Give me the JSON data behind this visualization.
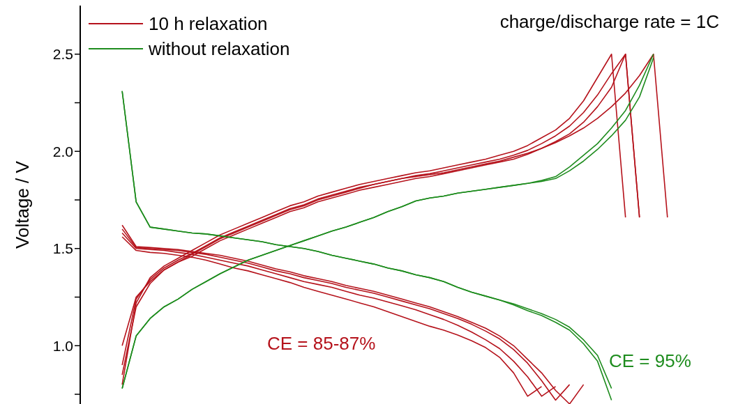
{
  "chart_data": {
    "type": "line",
    "ylabel": "Voltage / V",
    "ylim": [
      0.7,
      2.75
    ],
    "yticks": [
      {
        "value": 0.75,
        "label": null
      },
      {
        "value": 1,
        "label": "1.0"
      },
      {
        "value": 1.25,
        "label": null
      },
      1.5,
      {
        "value": 1.75,
        "label": null
      },
      {
        "value": 2,
        "label": "2.0"
      },
      {
        "value": 2.25,
        "label": null
      },
      2.5
    ],
    "categories": [
      null,
      null,
      null,
      null,
      null,
      null,
      null,
      null,
      null,
      null,
      null,
      null,
      null,
      null,
      null,
      null,
      null,
      null,
      null,
      null,
      null,
      null,
      null,
      null,
      null,
      null,
      null,
      null,
      null,
      null,
      null,
      null,
      null,
      null,
      null,
      null,
      null,
      null,
      null,
      null,
      null,
      null,
      null,
      null,
      null,
      null,
      null
    ],
    "legend": "top left",
    "marker": "none",
    "line_style": "solid",
    "tick_labels": "y",
    "annotations": [
      "charge/discharge rate = 1C",
      "CE = 85-87%",
      "CE = 95%"
    ],
    "series": [
      {
        "name": "10 h relaxation",
        "color": "#b5121b",
        "values": [
          null,
          null,
          null,
          0.8,
          1.22,
          1.35,
          1.41,
          1.45,
          1.49,
          1.53,
          1.57,
          1.6,
          1.63,
          1.66,
          1.69,
          1.72,
          1.74,
          1.77,
          1.79,
          1.81,
          1.83,
          1.845,
          1.86,
          1.875,
          1.89,
          1.9,
          1.915,
          1.93,
          1.945,
          1.96,
          1.98,
          2.0,
          2.03,
          2.07,
          2.11,
          2.17,
          2.26,
          2.38,
          2.5,
          1.66,
          null,
          null,
          null,
          null,
          null,
          null,
          null
        ]
      },
      {
        "color": "#b5121b",
        "values": [
          null,
          null,
          null,
          0.9,
          1.24,
          1.34,
          1.4,
          1.44,
          1.475,
          1.515,
          1.555,
          1.585,
          1.615,
          1.645,
          1.675,
          1.705,
          1.725,
          1.755,
          1.775,
          1.795,
          1.815,
          1.83,
          1.845,
          1.86,
          1.875,
          1.885,
          1.9,
          1.915,
          1.93,
          1.945,
          1.96,
          1.98,
          2.005,
          2.04,
          2.08,
          2.13,
          2.2,
          2.29,
          2.4,
          2.5,
          1.66,
          null,
          null,
          null,
          null,
          null,
          null
        ]
      },
      {
        "color": "#b5121b",
        "values": [
          null,
          null,
          null,
          1.0,
          1.25,
          1.33,
          1.39,
          1.43,
          1.46,
          1.5,
          1.54,
          1.57,
          1.6,
          1.63,
          1.66,
          1.69,
          1.71,
          1.74,
          1.76,
          1.78,
          1.8,
          1.815,
          1.83,
          1.845,
          1.86,
          1.87,
          1.885,
          1.9,
          1.915,
          1.93,
          1.945,
          1.96,
          1.985,
          2.015,
          2.05,
          2.09,
          2.15,
          2.23,
          2.33,
          2.5,
          1.66,
          null,
          null,
          null,
          null,
          null,
          null
        ]
      },
      {
        "color": "#b5121b",
        "values": [
          null,
          null,
          null,
          0.85,
          1.2,
          1.32,
          1.39,
          1.43,
          1.47,
          1.51,
          1.55,
          1.58,
          1.61,
          1.64,
          1.67,
          1.7,
          1.72,
          1.75,
          1.77,
          1.79,
          1.81,
          1.83,
          1.845,
          1.86,
          1.87,
          1.88,
          1.89,
          1.905,
          1.92,
          1.935,
          1.95,
          1.97,
          1.99,
          2.015,
          2.045,
          2.08,
          2.12,
          2.17,
          2.23,
          2.3,
          2.39,
          2.5,
          1.66,
          null,
          null,
          null,
          null
        ]
      },
      {
        "color": "#b5121b",
        "values": [
          null,
          null,
          null,
          1.62,
          1.51,
          1.505,
          1.5,
          1.495,
          1.485,
          1.475,
          1.465,
          1.45,
          1.435,
          1.415,
          1.395,
          1.38,
          1.36,
          1.345,
          1.33,
          1.31,
          1.295,
          1.28,
          1.26,
          1.24,
          1.22,
          1.2,
          1.175,
          1.15,
          1.12,
          1.09,
          1.05,
          1.0,
          0.93,
          0.86,
          0.77,
          0.7,
          0.8,
          null,
          null,
          null,
          null,
          null,
          null,
          null,
          null,
          null,
          null
        ]
      },
      {
        "color": "#b5121b",
        "values": [
          null,
          null,
          null,
          1.6,
          1.505,
          1.5,
          1.495,
          1.49,
          1.48,
          1.47,
          1.455,
          1.44,
          1.425,
          1.405,
          1.385,
          1.37,
          1.35,
          1.335,
          1.32,
          1.3,
          1.285,
          1.27,
          1.25,
          1.23,
          1.21,
          1.19,
          1.165,
          1.14,
          1.11,
          1.075,
          1.035,
          0.98,
          0.91,
          0.82,
          0.72,
          0.8,
          null,
          null,
          null,
          null,
          null,
          null,
          null,
          null,
          null,
          null,
          null
        ]
      },
      {
        "color": "#b5121b",
        "values": [
          null,
          null,
          null,
          1.58,
          1.5,
          1.495,
          1.49,
          1.48,
          1.47,
          1.455,
          1.44,
          1.425,
          1.41,
          1.39,
          1.37,
          1.35,
          1.33,
          1.315,
          1.3,
          1.28,
          1.26,
          1.245,
          1.225,
          1.205,
          1.185,
          1.16,
          1.135,
          1.105,
          1.07,
          1.03,
          0.985,
          0.92,
          0.84,
          0.74,
          0.79,
          null,
          null,
          null,
          null,
          null,
          null,
          null,
          null,
          null,
          null,
          null,
          null
        ]
      },
      {
        "color": "#b5121b",
        "values": [
          null,
          null,
          null,
          1.56,
          1.49,
          1.48,
          1.475,
          1.465,
          1.455,
          1.44,
          1.42,
          1.4,
          1.385,
          1.365,
          1.345,
          1.325,
          1.3,
          1.28,
          1.26,
          1.24,
          1.22,
          1.2,
          1.175,
          1.15,
          1.125,
          1.1,
          1.08,
          1.055,
          1.025,
          0.99,
          0.94,
          0.86,
          0.74,
          0.79,
          null,
          null,
          null,
          null,
          null,
          null,
          null,
          null,
          null,
          null,
          null,
          null,
          null
        ]
      },
      {
        "name": "without relaxation",
        "color": "#1e8c1e",
        "values": [
          null,
          null,
          null,
          0.78,
          1.05,
          1.14,
          1.2,
          1.24,
          1.29,
          1.33,
          1.37,
          1.405,
          1.44,
          1.465,
          1.49,
          1.515,
          1.54,
          1.565,
          1.59,
          1.61,
          1.635,
          1.66,
          1.69,
          1.715,
          1.745,
          1.76,
          1.77,
          1.785,
          1.795,
          1.805,
          1.815,
          1.825,
          1.835,
          1.85,
          1.87,
          1.92,
          1.98,
          2.04,
          2.12,
          2.21,
          2.34,
          2.5,
          null,
          null,
          null,
          null,
          null
        ]
      },
      {
        "color": "#1e8c1e",
        "values": [
          null,
          null,
          null,
          0.78,
          1.05,
          1.14,
          1.2,
          1.24,
          1.29,
          1.33,
          1.37,
          1.405,
          1.44,
          1.465,
          1.49,
          1.515,
          1.54,
          1.565,
          1.59,
          1.61,
          1.635,
          1.66,
          1.69,
          1.715,
          1.745,
          1.76,
          1.77,
          1.785,
          1.795,
          1.805,
          1.815,
          1.825,
          1.835,
          1.845,
          1.86,
          1.9,
          1.95,
          2.01,
          2.08,
          2.16,
          2.28,
          2.48,
          null,
          null,
          null,
          null,
          null
        ]
      },
      {
        "color": "#1e8c1e",
        "values": [
          null,
          null,
          null,
          2.31,
          1.74,
          1.61,
          1.6,
          1.59,
          1.58,
          1.575,
          1.565,
          1.555,
          1.545,
          1.535,
          1.52,
          1.51,
          1.5,
          1.485,
          1.465,
          1.45,
          1.435,
          1.42,
          1.4,
          1.385,
          1.365,
          1.35,
          1.33,
          1.3,
          1.275,
          1.255,
          1.235,
          1.21,
          1.18,
          1.155,
          1.12,
          1.08,
          1.01,
          0.92,
          0.72,
          null,
          null,
          null,
          null,
          null,
          null,
          null,
          null
        ]
      },
      {
        "color": "#1e8c1e",
        "values": [
          null,
          null,
          null,
          2.31,
          1.74,
          1.61,
          1.6,
          1.59,
          1.58,
          1.575,
          1.565,
          1.555,
          1.545,
          1.535,
          1.52,
          1.51,
          1.5,
          1.485,
          1.465,
          1.45,
          1.435,
          1.42,
          1.4,
          1.385,
          1.365,
          1.35,
          1.33,
          1.3,
          1.275,
          1.255,
          1.235,
          1.215,
          1.19,
          1.165,
          1.135,
          1.095,
          1.03,
          0.95,
          0.78,
          null,
          null,
          null,
          null,
          null,
          null,
          null,
          null
        ]
      }
    ]
  }
}
